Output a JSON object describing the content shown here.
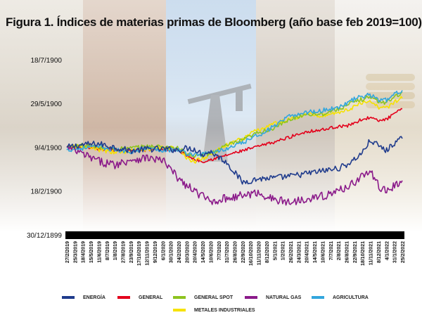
{
  "title": "Figura 1. Índices de materias primas de Bloomberg (año base feb 2019=100).",
  "chart_data": {
    "type": "line",
    "title": "Figura 1. Índices de materias primas de Bloomberg (año base feb 2019=100).",
    "xlabel": "",
    "ylabel": "",
    "yticks": [
      {
        "label": "18/7/1900",
        "value": 200
      },
      {
        "label": "29/5/1900",
        "value": 150
      },
      {
        "label": "9/4/1900",
        "value": 100
      },
      {
        "label": "18/2/1900",
        "value": 50
      },
      {
        "label": "30/12/1899",
        "value": 0
      }
    ],
    "ylim": [
      0,
      220
    ],
    "xticks": [
      "27/2/2019",
      "25/3/2019",
      "18/4/2019",
      "15/5/2019",
      "11/6/2019",
      "8/7/2019",
      "1/8/2019",
      "27/8/2019",
      "23/9/2019",
      "17/10/2019",
      "12/11/2019",
      "9/12/2019",
      "6/1/2020",
      "30/1/2020",
      "24/2/2020",
      "20/3/2020",
      "20/4/2020",
      "14/5/2020",
      "10/6/2020",
      "7/7/2020",
      "31/7/2020",
      "26/8/2020",
      "22/9/2020",
      "16/10/2020",
      "11/11/2020",
      "8/12/2020",
      "5/1/2021",
      "1/2/2021",
      "26/2/2021",
      "24/3/2021",
      "20/4/2021",
      "14/5/2021",
      "10/6/2021",
      "7/7/2021",
      "2/8/2021",
      "26/8/2021",
      "22/9/2021",
      "18/10/2021",
      "11/11/2021",
      "8/12/2021",
      "4/1/2022",
      "31/1/2022",
      "25/2/2022"
    ],
    "legend_position": "bottom",
    "grid": false,
    "series": [
      {
        "name": "ENERGÍA",
        "color": "#1f3b8c",
        "x": [
          0,
          2,
          4,
          6,
          8,
          10,
          12,
          14,
          15,
          16,
          17,
          18,
          20,
          22,
          24,
          26,
          28,
          30,
          32,
          34,
          35,
          36,
          37,
          38,
          39,
          40,
          41,
          42
        ],
        "y": [
          100,
          103,
          104,
          100,
          96,
          98,
          98,
          97,
          99,
          98,
          92,
          95,
          83,
          60,
          64,
          65,
          67,
          70,
          73,
          76,
          80,
          86,
          94,
          108,
          102,
          96,
          105,
          110
        ]
      },
      {
        "name": "GENERAL",
        "color": "#e3001b",
        "x": [
          0,
          2,
          4,
          6,
          8,
          10,
          12,
          14,
          15,
          16,
          17,
          18,
          20,
          22,
          24,
          26,
          28,
          30,
          32,
          34,
          35,
          36,
          37,
          38,
          39,
          40,
          41,
          42
        ],
        "y": [
          100,
          99,
          98,
          97,
          96,
          97,
          98,
          96,
          91,
          86,
          84,
          86,
          91,
          96,
          101,
          106,
          112,
          118,
          120,
          124,
          124,
          128,
          132,
          134,
          130,
          132,
          138,
          144
        ]
      },
      {
        "name": "GENERAL SPOT",
        "color": "#8dc31f",
        "x": [
          0,
          2,
          4,
          6,
          8,
          10,
          12,
          14,
          15,
          16,
          17,
          18,
          20,
          22,
          24,
          26,
          28,
          30,
          32,
          34,
          35,
          36,
          37,
          38,
          39,
          40,
          41,
          42
        ],
        "y": [
          100,
          102,
          100,
          98,
          99,
          101,
          101,
          99,
          92,
          90,
          91,
          93,
          102,
          108,
          117,
          122,
          132,
          138,
          138,
          144,
          147,
          152,
          155,
          158,
          152,
          151,
          158,
          163
        ]
      },
      {
        "name": "NATURAL GAS",
        "color": "#8b1a8a",
        "x": [
          0,
          2,
          4,
          6,
          8,
          10,
          12,
          14,
          15,
          16,
          17,
          18,
          20,
          22,
          24,
          26,
          28,
          30,
          32,
          34,
          35,
          36,
          37,
          38,
          39,
          40,
          41,
          42
        ],
        "y": [
          100,
          92,
          84,
          80,
          86,
          88,
          85,
          64,
          56,
          50,
          44,
          38,
          42,
          45,
          48,
          40,
          37,
          42,
          44,
          50,
          55,
          60,
          68,
          72,
          56,
          50,
          56,
          62
        ]
      },
      {
        "name": "AGRICULTURA",
        "color": "#33a6dd",
        "x": [
          0,
          2,
          4,
          6,
          8,
          10,
          12,
          14,
          15,
          16,
          17,
          18,
          20,
          22,
          24,
          26,
          28,
          30,
          32,
          34,
          35,
          36,
          37,
          38,
          39,
          40,
          41,
          42
        ],
        "y": [
          97,
          99,
          101,
          97,
          95,
          99,
          97,
          97,
          93,
          92,
          92,
          94,
          98,
          105,
          114,
          124,
          136,
          140,
          142,
          146,
          150,
          155,
          158,
          160,
          154,
          154,
          160,
          165
        ]
      },
      {
        "name": "METALES INDUSTRIALES",
        "color": "#f6e200",
        "x": [
          0,
          2,
          4,
          6,
          8,
          10,
          12,
          14,
          15,
          16,
          17,
          18,
          20,
          22,
          24,
          26,
          28,
          30,
          32,
          34,
          35,
          36,
          37,
          38,
          39,
          40,
          41,
          42
        ],
        "y": [
          100,
          101,
          97,
          94,
          96,
          97,
          100,
          98,
          87,
          84,
          87,
          92,
          102,
          110,
          120,
          127,
          132,
          138,
          136,
          140,
          142,
          147,
          150,
          152,
          146,
          145,
          152,
          156
        ]
      }
    ]
  }
}
